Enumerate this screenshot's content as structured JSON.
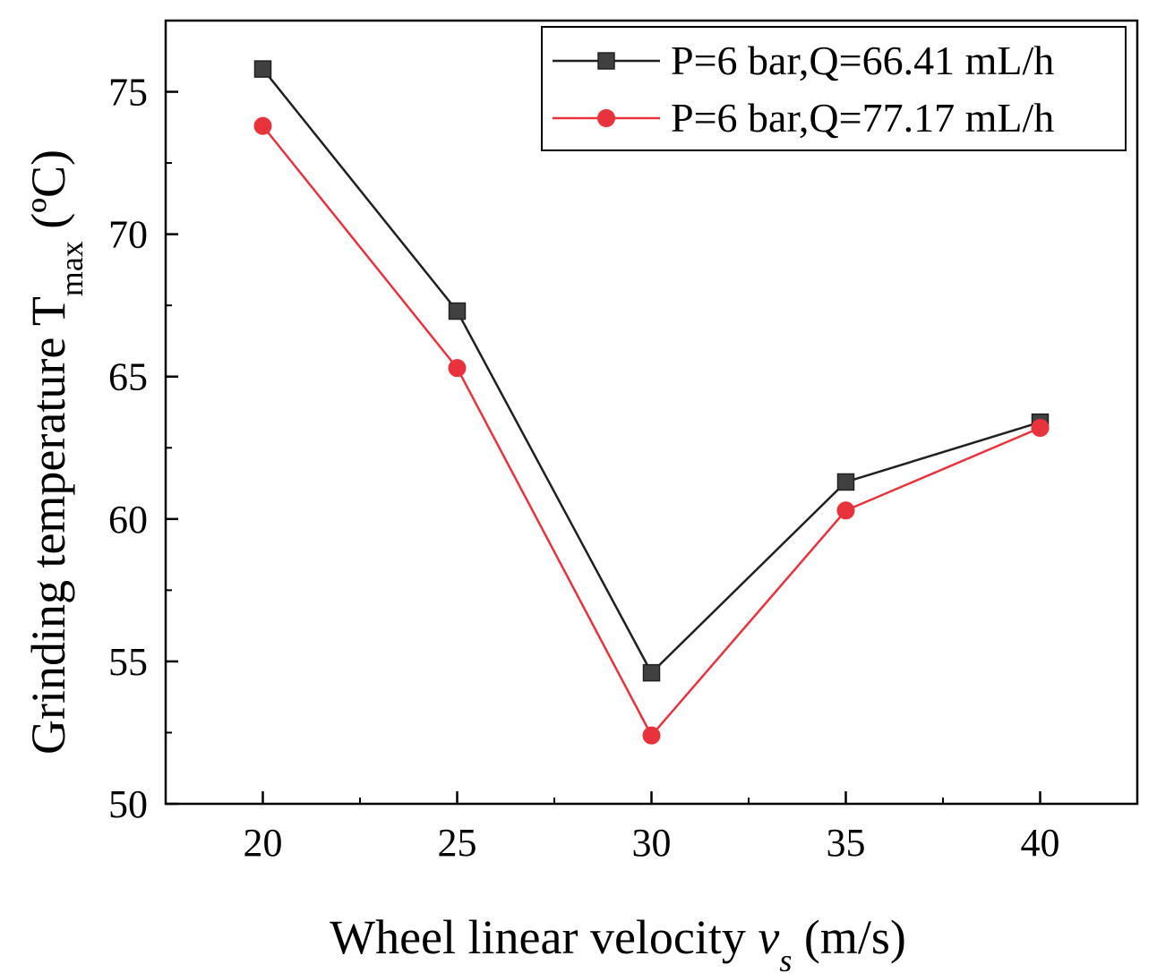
{
  "chart_data": {
    "type": "line",
    "xlabel_main": "Wheel  linear velocity ",
    "xlabel_var": "v",
    "xlabel_sub": "s",
    "xlabel_unit": " (m/s)",
    "ylabel_main": "Grinding temperature T",
    "ylabel_sub": "max",
    "ylabel_unit": " (ºC)",
    "x": [
      20,
      25,
      30,
      35,
      40
    ],
    "xlim": [
      17.5,
      42.5
    ],
    "ylim": [
      50,
      77.5
    ],
    "x_ticks": [
      20,
      25,
      30,
      35,
      40
    ],
    "y_ticks": [
      50,
      55,
      60,
      65,
      70,
      75
    ],
    "grid": false,
    "legend_position": "top-right",
    "series": [
      {
        "name": "P=6 bar,Q=66.41 mL/h",
        "marker": "square",
        "color": "#404040",
        "line_color": "#202020",
        "values": [
          75.8,
          67.3,
          54.6,
          61.3,
          63.4
        ]
      },
      {
        "name": "P=6 bar,Q=77.17 mL/h",
        "marker": "circle",
        "color": "#e8323c",
        "line_color": "#e8323c",
        "values": [
          73.8,
          65.3,
          52.4,
          60.3,
          63.2
        ]
      }
    ]
  }
}
